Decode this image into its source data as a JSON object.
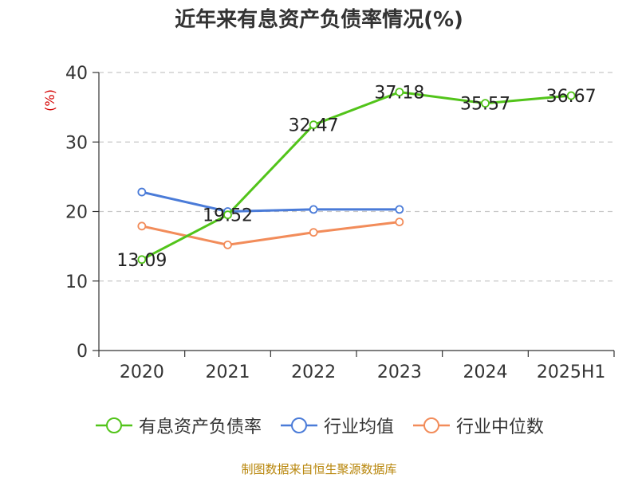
{
  "chart_data": {
    "type": "line",
    "title": "近年来有息资产负债率情况(%)",
    "ylabel": "(%)",
    "categories": [
      "2020",
      "2021",
      "2022",
      "2023",
      "2024",
      "2025H1"
    ],
    "ylim": [
      0,
      40
    ],
    "yticks": [
      "0",
      "10",
      "20",
      "30",
      "40"
    ],
    "grid": true,
    "legend_position": "bottom",
    "series": [
      {
        "name": "有息资产负债率",
        "color": "#52c41a",
        "values": [
          13.09,
          19.52,
          32.47,
          37.18,
          35.57,
          36.67
        ],
        "labels": [
          "13.09",
          "19.52",
          "32.47",
          "37.18",
          "35.57",
          "36.67"
        ]
      },
      {
        "name": "行业均值",
        "color": "#4a7bd8",
        "values": [
          22.8,
          20.0,
          20.3,
          20.3,
          null,
          null
        ]
      },
      {
        "name": "行业中位数",
        "color": "#f28c5a",
        "values": [
          17.9,
          15.2,
          17.0,
          18.5,
          null,
          null
        ]
      }
    ]
  },
  "source": "制图数据来自恒生聚源数据库"
}
